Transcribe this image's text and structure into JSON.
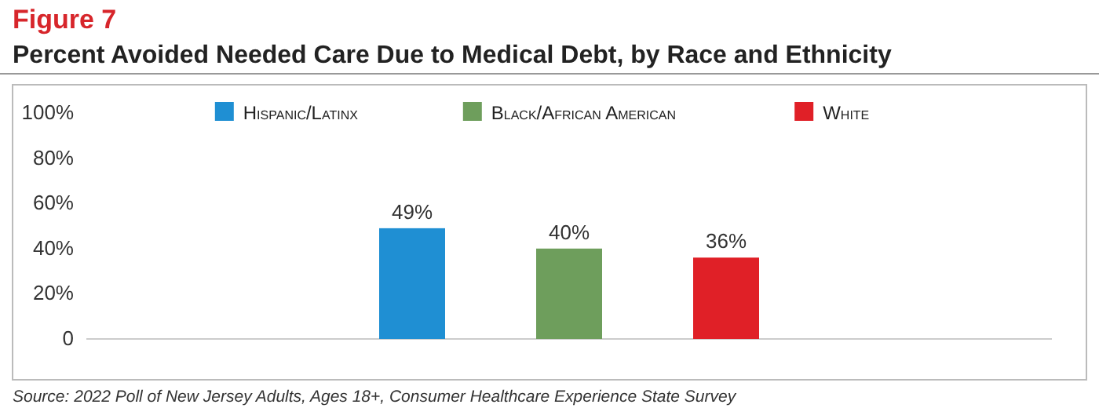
{
  "chart_data": {
    "type": "bar",
    "title": "Figure 7",
    "subtitle": "Percent Avoided Needed Care Due to Medical Debt, by Race and Ethnicity",
    "categories": [
      null
    ],
    "series": [
      {
        "name": "Hispanic/Latinx",
        "color": "#1f8fd3",
        "values": [
          49
        ]
      },
      {
        "name": "Black/African American",
        "color": "#6e9e5c",
        "values": [
          40
        ]
      },
      {
        "name": "White",
        "color": "#e02027",
        "values": [
          36
        ]
      }
    ],
    "ylim": [
      0,
      100
    ],
    "yticks": [
      {
        "value": 0,
        "label": "0"
      },
      {
        "value": 20,
        "label": "20%"
      },
      {
        "value": 40,
        "label": "40%"
      },
      {
        "value": 60,
        "label": "60%"
      },
      {
        "value": 80,
        "label": "80%"
      },
      {
        "value": 100,
        "label": "100%"
      }
    ],
    "value_labels": [
      "49%",
      "40%",
      "36%"
    ],
    "legend": "top",
    "annotations": [
      "Source: 2022 Poll of New Jersey Adults, Ages 18+, Consumer Healthcare Experience State Survey"
    ]
  }
}
